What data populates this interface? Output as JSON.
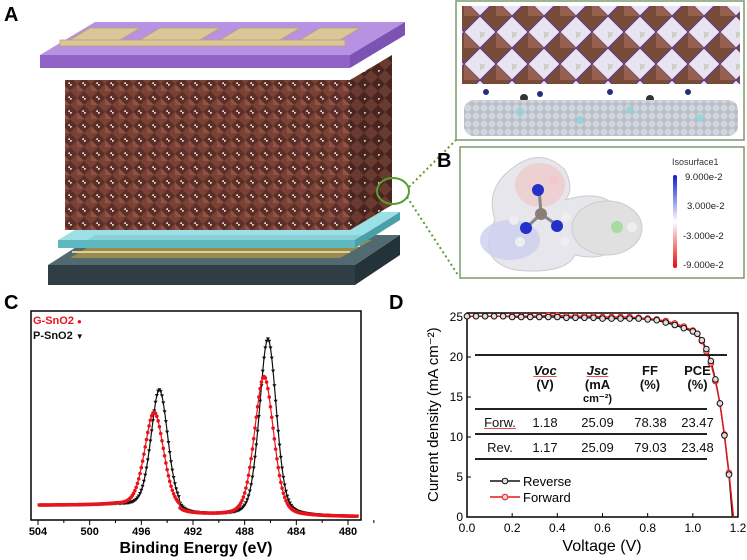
{
  "panels": {
    "a": {
      "label": "A"
    },
    "b": {
      "label": "B",
      "colorbar": {
        "title": "Isosurface1",
        "ticks": [
          "9.000e-2",
          "3.000e-2",
          "-3.000e-2",
          "-9.000e-2"
        ],
        "colors": [
          "#0a1ccf",
          "#ffffff",
          "#e80a0a"
        ]
      }
    },
    "c": {
      "label": "C"
    },
    "d": {
      "label": "D"
    }
  },
  "colors": {
    "perovskite": "#6b3a30",
    "top_layer": "#a77fd6",
    "electrode": "#d9c79a",
    "etl": "#7fd3d9",
    "substrate": "#3c4e55",
    "zoom_link": "#5a9e2f"
  },
  "chart_data": [
    {
      "id": "c",
      "type": "line",
      "xlabel": "Binding Energy (eV)",
      "ylabel": "",
      "xlim": [
        504.5,
        479
      ],
      "xticks": [
        504,
        500,
        496,
        492,
        488,
        484,
        480
      ],
      "ylim": [
        0,
        1
      ],
      "grid": false,
      "legend_placement": "top-left",
      "series": [
        {
          "name": "G-SnO2",
          "marker": "●",
          "color": "#e8141c",
          "baseline_left": 0.07,
          "baseline_right": 0.015,
          "peaks": [
            {
              "center": 495.0,
              "height": 0.46,
              "fwhm": 1.75
            },
            {
              "center": 486.5,
              "height": 0.67,
              "fwhm": 1.75
            }
          ]
        },
        {
          "name": "P-SnO2",
          "marker": "▼",
          "color": "#111111",
          "baseline_left": 0.07,
          "baseline_right": 0.015,
          "peaks": [
            {
              "center": 494.6,
              "height": 0.57,
              "fwhm": 1.55
            },
            {
              "center": 486.2,
              "height": 0.85,
              "fwhm": 1.55
            }
          ]
        }
      ]
    },
    {
      "id": "d",
      "type": "line",
      "xlabel": "Voltage (V)",
      "ylabel": "Current density (mA cm⁻²)",
      "xlim": [
        0,
        1.2
      ],
      "ylim": [
        0,
        26.5
      ],
      "xticks": [
        "0.0",
        "0.2",
        "0.4",
        "0.6",
        "0.8",
        "1.0",
        "1.2"
      ],
      "yticks": [
        "0",
        "5",
        "10",
        "15",
        "20",
        "25"
      ],
      "legend_placement": "bottom-left",
      "series": [
        {
          "name": "Reverse",
          "color": "#111111",
          "x": [
            0,
            0.04,
            0.08,
            0.12,
            0.16,
            0.2,
            0.24,
            0.28,
            0.32,
            0.36,
            0.4,
            0.44,
            0.48,
            0.52,
            0.56,
            0.6,
            0.64,
            0.68,
            0.72,
            0.76,
            0.8,
            0.84,
            0.88,
            0.92,
            0.96,
            1.0,
            1.02,
            1.04,
            1.06,
            1.08,
            1.1,
            1.12,
            1.14,
            1.16,
            1.175
          ],
          "y": [
            25.1,
            25.1,
            25.1,
            25.1,
            25.1,
            25.0,
            25.0,
            25.0,
            25.0,
            25.0,
            25.0,
            24.9,
            24.9,
            24.9,
            24.9,
            24.8,
            24.8,
            24.8,
            24.8,
            24.8,
            24.7,
            24.6,
            24.3,
            24.0,
            23.6,
            23.2,
            22.9,
            22.1,
            21.0,
            19.5,
            17.2,
            14.2,
            10.2,
            5.3,
            0
          ]
        },
        {
          "name": "Forward",
          "color": "#e8141c",
          "x": [
            0,
            0.04,
            0.08,
            0.12,
            0.16,
            0.2,
            0.24,
            0.28,
            0.32,
            0.36,
            0.4,
            0.44,
            0.48,
            0.52,
            0.56,
            0.6,
            0.64,
            0.68,
            0.72,
            0.76,
            0.8,
            0.84,
            0.88,
            0.92,
            0.96,
            1.0,
            1.02,
            1.04,
            1.06,
            1.08,
            1.1,
            1.12,
            1.14,
            1.16,
            1.18
          ],
          "y": [
            25.1,
            25.1,
            25.1,
            25.1,
            25.1,
            25.1,
            25.1,
            25.1,
            25.1,
            25.2,
            25.2,
            25.1,
            25.1,
            25.1,
            25.1,
            25.0,
            25.0,
            25.0,
            25.0,
            24.9,
            24.8,
            24.7,
            24.5,
            24.2,
            23.8,
            23.3,
            22.9,
            22.0,
            20.7,
            19.2,
            17.0,
            14.2,
            10.3,
            5.5,
            0
          ]
        }
      ],
      "inset_table": {
        "headers": [
          [
            "Voc",
            "(V)"
          ],
          [
            "Jsc",
            "(mA",
            "cm⁻²)"
          ],
          [
            "FF",
            "(%)"
          ],
          [
            "PCE",
            "(%)"
          ]
        ],
        "rows": [
          {
            "label": "Forw.",
            "values": [
              "1.18",
              "25.09",
              "78.38",
              "23.47"
            ]
          },
          {
            "label": "Rev.",
            "values": [
              "1.17",
              "25.09",
              "79.03",
              "23.48"
            ]
          }
        ]
      }
    }
  ]
}
